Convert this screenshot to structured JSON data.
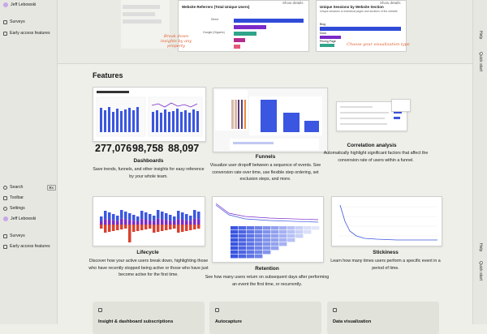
{
  "sidebar": {
    "top_items": [
      "Jeff Lebowski",
      "Surveys",
      "Early access features"
    ],
    "bottom_items": [
      {
        "label": "Search",
        "shortcut": "⌘K"
      },
      {
        "label": "Toolbar"
      },
      {
        "label": "Settings"
      },
      {
        "label": "Jeff Lebowski"
      },
      {
        "label": "Surveys"
      },
      {
        "label": "Early access features"
      }
    ]
  },
  "right_bar": {
    "top": [
      "Help",
      "Quick start"
    ],
    "bottom": [
      "Help",
      "Quick start"
    ]
  },
  "hero": {
    "card_left_title": "Website Referrers (Total Unique Users)",
    "card_right_title": "Unique Sessions by Website Section",
    "card_right_subtitle": "Unique sessions to individual pages and sections of the website",
    "show_details": "Show details",
    "left_labels": [
      "Direct",
      "Google (Organic)"
    ],
    "right_labels": [
      "Blog",
      "Docs",
      "Pricing Page"
    ],
    "annotation_left": "Break down insights by any property",
    "annotation_right": "Choose your visualization type"
  },
  "features": {
    "heading": "Features",
    "dashboard_numbers": [
      "277,076",
      "98,758",
      "88,097"
    ],
    "items": [
      {
        "title": "Dashboards",
        "description": "Save trends, funnels, and other insights for easy reference by your whole team."
      },
      {
        "title": "Funnels",
        "description": "Visualize user dropoff between a sequence of events. See conversion rate over time, use flexible step ordering, set exclusion steps, and more."
      },
      {
        "title": "Correlation analysis",
        "description": "Automatically highlight significant factors that affect the conversion rate of users within a funnel."
      },
      {
        "title": "Lifecycle",
        "description": "Discover how your active users break down, highlighting those who have recently stopped being active or those who have just become active for the first time."
      },
      {
        "title": "Retention",
        "description": "See how many users return on subsequent days after performing an event the first time, or recurrently."
      },
      {
        "title": "Stickiness",
        "description": "Learn how many times users perform a specific event in a period of time."
      }
    ],
    "cards": [
      "Insight & dashboard subscriptions",
      "Autocapture",
      "Data visualization"
    ]
  }
}
